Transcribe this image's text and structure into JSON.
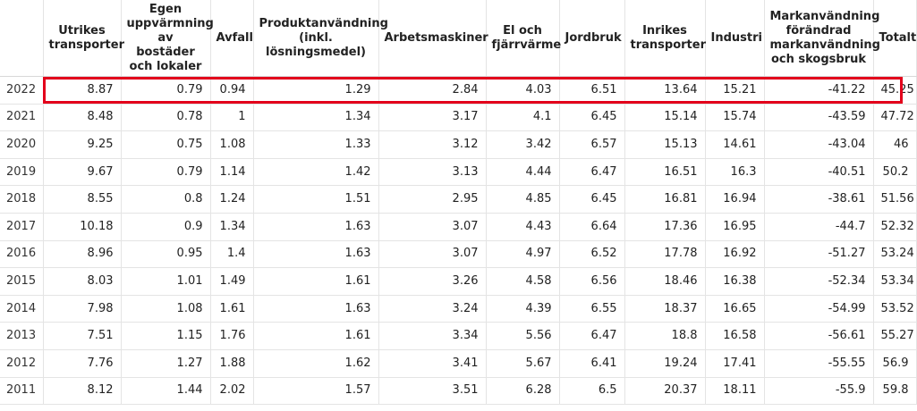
{
  "table": {
    "columns": [
      "",
      "Utrikes transporter",
      "Egen uppvärmning av bostäder och lokaler",
      "Avfall",
      "Produktanvändning (inkl. lösningsmedel)",
      "Arbetsmaskiner",
      "El och fjärrvärme",
      "Jordbruk",
      "Inrikes transporter",
      "Industri",
      "Markanvändning förändrad markanvändning och skogsbruk",
      "Totalt"
    ],
    "rows": [
      [
        "2022",
        "8.87",
        "0.79",
        "0.94",
        "1.29",
        "2.84",
        "4.03",
        "6.51",
        "13.64",
        "15.21",
        "-41.22",
        "45.25"
      ],
      [
        "2021",
        "8.48",
        "0.78",
        "1",
        "1.34",
        "3.17",
        "4.1",
        "6.45",
        "15.14",
        "15.74",
        "-43.59",
        "47.72"
      ],
      [
        "2020",
        "9.25",
        "0.75",
        "1.08",
        "1.33",
        "3.12",
        "3.42",
        "6.57",
        "15.13",
        "14.61",
        "-43.04",
        "46"
      ],
      [
        "2019",
        "9.67",
        "0.79",
        "1.14",
        "1.42",
        "3.13",
        "4.44",
        "6.47",
        "16.51",
        "16.3",
        "-40.51",
        "50.2"
      ],
      [
        "2018",
        "8.55",
        "0.8",
        "1.24",
        "1.51",
        "2.95",
        "4.85",
        "6.45",
        "16.81",
        "16.94",
        "-38.61",
        "51.56"
      ],
      [
        "2017",
        "10.18",
        "0.9",
        "1.34",
        "1.63",
        "3.07",
        "4.43",
        "6.64",
        "17.36",
        "16.95",
        "-44.7",
        "52.32"
      ],
      [
        "2016",
        "8.96",
        "0.95",
        "1.4",
        "1.63",
        "3.07",
        "4.97",
        "6.52",
        "17.78",
        "16.92",
        "-51.27",
        "53.24"
      ],
      [
        "2015",
        "8.03",
        "1.01",
        "1.49",
        "1.61",
        "3.26",
        "4.58",
        "6.56",
        "18.46",
        "16.38",
        "-52.34",
        "53.34"
      ],
      [
        "2014",
        "7.98",
        "1.08",
        "1.61",
        "1.63",
        "3.24",
        "4.39",
        "6.55",
        "18.37",
        "16.65",
        "-54.99",
        "53.52"
      ],
      [
        "2013",
        "7.51",
        "1.15",
        "1.76",
        "1.61",
        "3.34",
        "5.56",
        "6.47",
        "18.8",
        "16.58",
        "-56.61",
        "55.27"
      ],
      [
        "2012",
        "7.76",
        "1.27",
        "1.88",
        "1.62",
        "3.41",
        "5.67",
        "6.41",
        "19.24",
        "17.41",
        "-55.55",
        "56.9"
      ],
      [
        "2011",
        "8.12",
        "1.44",
        "2.02",
        "1.57",
        "3.51",
        "6.28",
        "6.5",
        "20.37",
        "18.11",
        "-55.9",
        "59.8"
      ]
    ],
    "highlighted_row": "2022",
    "highlight_color": "#e3001b"
  }
}
